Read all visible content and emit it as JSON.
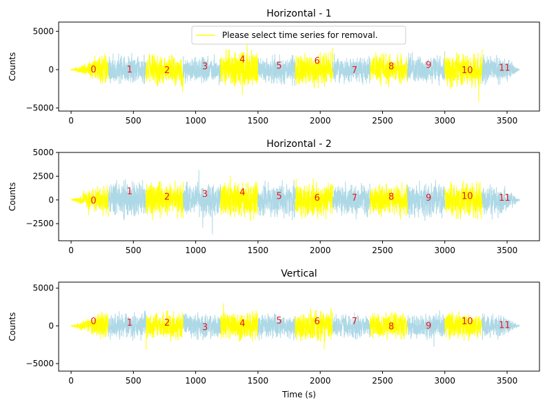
{
  "chart_data": [
    {
      "type": "line",
      "title": "Horizontal - 1",
      "ylabel": "Counts",
      "xlabel": "",
      "xlim": [
        -100,
        3760
      ],
      "ylim": [
        -5400,
        6200
      ],
      "xticks": [
        0,
        500,
        1000,
        1500,
        2000,
        2500,
        3000,
        3500
      ],
      "yticks": [
        -5000,
        0,
        5000
      ],
      "ytick_labels": [
        "−5000",
        "0",
        "5000"
      ],
      "legend": {
        "label": "Please select time series for removal.",
        "color": "#ffff00",
        "placement": "top-center"
      },
      "segment_amplitudes": [
        3200,
        2800,
        3100,
        2700,
        3700,
        2900,
        3300,
        2700,
        3000,
        3100,
        3400,
        3000
      ],
      "segment_label_y": [
        0,
        0,
        -100,
        400,
        1300,
        500,
        1100,
        -100,
        400,
        600,
        -100,
        200
      ]
    },
    {
      "type": "line",
      "title": "Horizontal - 2",
      "ylabel": "Counts",
      "xlabel": "",
      "xlim": [
        -100,
        3760
      ],
      "ylim": [
        -4300,
        5000
      ],
      "xticks": [
        0,
        500,
        1000,
        1500,
        2000,
        2500,
        3000,
        3500
      ],
      "yticks": [
        -2500,
        0,
        2500,
        5000
      ],
      "ytick_labels": [
        "−2500",
        "0",
        "2500",
        "5000"
      ],
      "segment_amplitudes": [
        2500,
        3000,
        2800,
        2600,
        3100,
        2700,
        3000,
        2600,
        2700,
        3000,
        2800,
        2600
      ],
      "segment_label_y": [
        -100,
        900,
        300,
        600,
        800,
        400,
        200,
        200,
        300,
        200,
        400,
        200
      ]
    },
    {
      "type": "line",
      "title": "Vertical",
      "ylabel": "Counts",
      "xlabel": "Time (s)",
      "xlim": [
        -100,
        3760
      ],
      "ylim": [
        -6000,
        5800
      ],
      "xticks": [
        0,
        500,
        1000,
        1500,
        2000,
        2500,
        3000,
        3500
      ],
      "yticks": [
        -5000,
        0,
        5000
      ],
      "ytick_labels": [
        "−5000",
        "0",
        "5000"
      ],
      "segment_amplitudes": [
        3000,
        2600,
        2800,
        2500,
        2900,
        2700,
        3400,
        2600,
        2600,
        2700,
        3000,
        2600
      ],
      "segment_label_y": [
        600,
        400,
        400,
        -200,
        300,
        700,
        600,
        600,
        -100,
        0,
        600,
        100
      ]
    }
  ],
  "segments": {
    "labels": [
      "0",
      "1",
      "2",
      "3",
      "4",
      "5",
      "6",
      "7",
      "8",
      "9",
      "10",
      "11"
    ],
    "starts": [
      0,
      300,
      600,
      900,
      1200,
      1500,
      1800,
      2100,
      2400,
      2700,
      3000,
      3300
    ],
    "ends": [
      300,
      600,
      900,
      1200,
      1500,
      1800,
      2100,
      2400,
      2700,
      3000,
      3300,
      3600
    ],
    "label_x": [
      180,
      470,
      770,
      1075,
      1375,
      1670,
      1975,
      2275,
      2570,
      2870,
      3180,
      3480
    ],
    "colors": [
      "#ffff00",
      "#add8e6",
      "#ffff00",
      "#add8e6",
      "#ffff00",
      "#add8e6",
      "#ffff00",
      "#add8e6",
      "#ffff00",
      "#add8e6",
      "#ffff00",
      "#add8e6"
    ]
  }
}
